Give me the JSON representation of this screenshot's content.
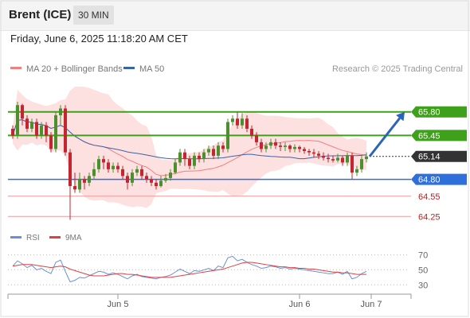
{
  "header": {
    "instrument": "Brent (ICE)",
    "timeframe": "30 MIN",
    "datetime": "Friday, June 6, 2025 11:18:20 AM CET"
  },
  "legend": {
    "ma20_bb": "MA 20 + Bollinger Bands",
    "ma50": "MA 50",
    "copyright": "Research © 2025 Trading Central",
    "rsi": "RSI",
    "rsi_ma": "9MA"
  },
  "colors": {
    "resistance": "#3fa01c",
    "support": "#2f6fdc",
    "current": "#333333",
    "pivot_lines": "#f09a9a",
    "bollinger_fill": "#fcd6d6",
    "ma20": "#f08080",
    "ma50": "#3b64a8",
    "candle_up": "#4c8f2f",
    "candle_down": "#c3262e",
    "rsi": "#6b8fd6",
    "rsi_ma": "#e04040",
    "arrow": "#2b64b8"
  },
  "chart_data": [
    {
      "type": "candlestick",
      "instrument": "Brent (ICE)",
      "interval": "30 MIN",
      "ylim": [
        64.1,
        65.95
      ],
      "x_ticks": [
        "Jun 5",
        "Jun 6",
        "Jun 7"
      ],
      "levels": [
        {
          "value": 65.8,
          "label": "65.80",
          "kind": "resistance"
        },
        {
          "value": 65.45,
          "label": "65.45",
          "kind": "resistance"
        },
        {
          "value": 65.14,
          "label": "65.14",
          "kind": "current"
        },
        {
          "value": 64.8,
          "label": "64.80",
          "kind": "support"
        },
        {
          "value": 64.55,
          "label": "64.55",
          "kind": "pivot"
        },
        {
          "value": 64.25,
          "label": "64.25",
          "kind": "pivot"
        }
      ],
      "target_arrow": {
        "from": 65.14,
        "to": 65.8
      },
      "candles": [
        [
          65.55,
          65.45,
          65.6,
          65.4
        ],
        [
          65.45,
          65.9,
          65.95,
          65.4
        ],
        [
          65.9,
          65.7,
          65.92,
          65.6
        ],
        [
          65.7,
          65.55,
          65.75,
          65.5
        ],
        [
          65.55,
          65.65,
          65.7,
          65.5
        ],
        [
          65.65,
          65.45,
          65.7,
          65.4
        ],
        [
          65.45,
          65.6,
          65.65,
          65.4
        ],
        [
          65.6,
          65.45,
          65.65,
          65.35
        ],
        [
          65.45,
          65.25,
          65.5,
          65.2
        ],
        [
          65.25,
          65.75,
          65.8,
          65.2
        ],
        [
          65.75,
          65.85,
          65.9,
          65.6
        ],
        [
          65.85,
          65.2,
          65.9,
          65.15
        ],
        [
          65.2,
          64.7,
          65.25,
          64.2
        ],
        [
          64.7,
          64.65,
          64.9,
          64.6
        ],
        [
          64.65,
          64.8,
          64.9,
          64.6
        ],
        [
          64.8,
          64.75,
          64.85,
          64.65
        ],
        [
          64.75,
          64.85,
          64.9,
          64.7
        ],
        [
          64.85,
          64.95,
          65.05,
          64.8
        ],
        [
          64.95,
          65.1,
          65.15,
          64.9
        ],
        [
          65.1,
          65.05,
          65.15,
          64.95
        ],
        [
          65.05,
          64.95,
          65.1,
          64.9
        ],
        [
          64.95,
          65.0,
          65.05,
          64.9
        ],
        [
          65.0,
          64.95,
          65.05,
          64.9
        ],
        [
          64.95,
          64.85,
          65.0,
          64.8
        ],
        [
          64.85,
          64.75,
          64.9,
          64.65
        ],
        [
          64.75,
          64.9,
          64.95,
          64.7
        ],
        [
          64.9,
          64.95,
          65.0,
          64.85
        ],
        [
          64.95,
          64.85,
          65.0,
          64.8
        ],
        [
          64.85,
          64.8,
          64.9,
          64.75
        ],
        [
          64.8,
          64.75,
          64.85,
          64.7
        ],
        [
          64.75,
          64.7,
          64.8,
          64.65
        ],
        [
          64.7,
          64.78,
          64.85,
          64.68
        ],
        [
          64.78,
          64.82,
          64.88,
          64.75
        ],
        [
          64.82,
          64.9,
          64.95,
          64.78
        ],
        [
          64.9,
          65.05,
          65.1,
          64.88
        ],
        [
          65.05,
          65.2,
          65.25,
          65.0
        ],
        [
          65.2,
          65.1,
          65.25,
          65.0
        ],
        [
          65.1,
          65.0,
          65.15,
          64.95
        ],
        [
          65.0,
          65.15,
          65.2,
          64.95
        ],
        [
          65.15,
          65.1,
          65.2,
          65.05
        ],
        [
          65.1,
          65.2,
          65.25,
          65.05
        ],
        [
          65.2,
          65.25,
          65.3,
          65.15
        ],
        [
          65.25,
          65.15,
          65.3,
          65.1
        ],
        [
          65.15,
          65.3,
          65.35,
          65.1
        ],
        [
          65.3,
          65.25,
          65.35,
          65.2
        ],
        [
          65.25,
          65.65,
          65.7,
          65.2
        ],
        [
          65.65,
          65.7,
          65.75,
          65.6
        ],
        [
          65.7,
          65.6,
          65.8,
          65.55
        ],
        [
          65.6,
          65.7,
          65.78,
          65.55
        ],
        [
          65.7,
          65.55,
          65.75,
          65.5
        ],
        [
          65.55,
          65.45,
          65.6,
          65.4
        ],
        [
          65.45,
          65.35,
          65.5,
          65.3
        ],
        [
          65.35,
          65.25,
          65.4,
          65.2
        ],
        [
          65.25,
          65.3,
          65.35,
          65.2
        ],
        [
          65.3,
          65.35,
          65.4,
          65.25
        ],
        [
          65.35,
          65.3,
          65.4,
          65.25
        ],
        [
          65.3,
          65.28,
          65.35,
          65.22
        ],
        [
          65.28,
          65.3,
          65.35,
          65.22
        ],
        [
          65.3,
          65.25,
          65.32,
          65.2
        ],
        [
          65.25,
          65.28,
          65.32,
          65.2
        ],
        [
          65.28,
          65.25,
          65.3,
          65.2
        ],
        [
          65.25,
          65.22,
          65.28,
          65.18
        ],
        [
          65.22,
          65.2,
          65.25,
          65.15
        ],
        [
          65.2,
          65.18,
          65.25,
          65.12
        ],
        [
          65.18,
          65.15,
          65.22,
          65.1
        ],
        [
          65.15,
          65.12,
          65.2,
          65.08
        ],
        [
          65.12,
          65.1,
          65.18,
          65.05
        ],
        [
          65.1,
          65.08,
          65.15,
          65.05
        ],
        [
          65.08,
          65.12,
          65.18,
          65.05
        ],
        [
          65.12,
          65.05,
          65.15,
          65.0
        ],
        [
          65.05,
          65.15,
          65.2,
          65.0
        ],
        [
          65.15,
          64.9,
          65.2,
          64.8
        ],
        [
          64.9,
          64.95,
          65.0,
          64.85
        ],
        [
          64.95,
          65.1,
          65.15,
          64.9
        ],
        [
          65.1,
          65.14,
          65.2,
          65.05
        ]
      ]
    },
    {
      "type": "line",
      "name": "RSI",
      "ylim": [
        25,
        78
      ],
      "y_ticks": [
        70,
        50,
        30
      ],
      "series": [
        {
          "name": "RSI",
          "values": [
            55,
            62,
            58,
            53,
            56,
            50,
            52,
            48,
            45,
            60,
            63,
            48,
            34,
            36,
            40,
            39,
            42,
            45,
            48,
            47,
            44,
            46,
            44,
            41,
            38,
            42,
            44,
            41,
            40,
            39,
            38,
            40,
            41,
            43,
            47,
            51,
            48,
            45,
            49,
            48,
            50,
            52,
            49,
            55,
            53,
            66,
            68,
            62,
            64,
            60,
            57,
            55,
            52,
            53,
            55,
            54,
            52,
            53,
            51,
            52,
            51,
            50,
            49,
            48,
            47,
            46,
            45,
            45,
            47,
            44,
            48,
            38,
            40,
            45,
            48
          ]
        },
        {
          "name": "9MA",
          "values": [
            55,
            56,
            57,
            57,
            57,
            56,
            55,
            54,
            53,
            54,
            55,
            54,
            51,
            49,
            47,
            45,
            43,
            42,
            42,
            42,
            43,
            44,
            45,
            45,
            44,
            44,
            43,
            42,
            41,
            40,
            40,
            40,
            40,
            40,
            41,
            42,
            43,
            44,
            45,
            46,
            47,
            48,
            49,
            50,
            51,
            53,
            55,
            57,
            59,
            60,
            60,
            59,
            58,
            57,
            56,
            55,
            54,
            54,
            53,
            53,
            52,
            52,
            51,
            51,
            50,
            49,
            48,
            47,
            47,
            46,
            46,
            45,
            44,
            44,
            44
          ]
        }
      ]
    }
  ]
}
